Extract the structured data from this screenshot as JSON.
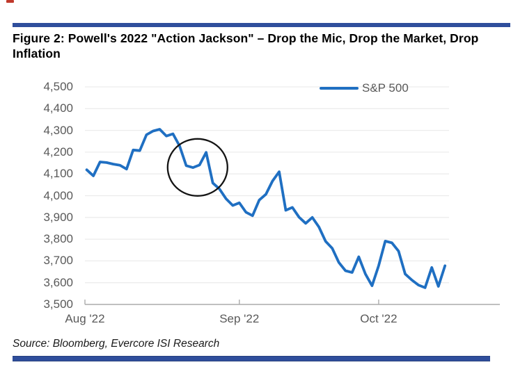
{
  "page": {
    "title": "Figure 2: Powell's 2022 \"Action Jackson\" – Drop the Mic, Drop the Market, Drop Inflation",
    "source": "Source: Bloomberg, Evercore ISI Research"
  },
  "legend": {
    "label": "S&P 500"
  },
  "colors": {
    "line": "#1f6fc2",
    "rule_bar": "#2f4e9c",
    "axis_text": "#595959",
    "grid": "#ececec",
    "axis": "#ababab",
    "annotation_circle": "#141414",
    "red_mark": "#c0392b"
  },
  "chart_data": {
    "type": "line",
    "title": "Figure 2: Powell's 2022 \"Action Jackson\" – Drop the Mic, Drop the Market, Drop Inflation",
    "legend_position": "top-right",
    "grid": "horizontal",
    "ylim": [
      3500,
      4500
    ],
    "y_ticks": [
      4500,
      4400,
      4300,
      4200,
      4100,
      4000,
      3900,
      3800,
      3700,
      3600,
      3500
    ],
    "y_tick_labels": [
      "4,500",
      "4,400",
      "4,300",
      "4,200",
      "4,100",
      "4,000",
      "3,900",
      "3,800",
      "3,700",
      "3,600",
      "3,500"
    ],
    "x_tick_labels": [
      "Aug '22",
      "Sep '22",
      "Oct '22"
    ],
    "x_tick_day_index": [
      0,
      23,
      44
    ],
    "series": [
      {
        "name": "S&P 500",
        "x": [
          "2022-08-01",
          "2022-08-02",
          "2022-08-03",
          "2022-08-04",
          "2022-08-05",
          "2022-08-08",
          "2022-08-09",
          "2022-08-10",
          "2022-08-11",
          "2022-08-12",
          "2022-08-15",
          "2022-08-16",
          "2022-08-17",
          "2022-08-18",
          "2022-08-19",
          "2022-08-22",
          "2022-08-23",
          "2022-08-24",
          "2022-08-25",
          "2022-08-26",
          "2022-08-29",
          "2022-08-30",
          "2022-08-31",
          "2022-09-01",
          "2022-09-02",
          "2022-09-06",
          "2022-09-07",
          "2022-09-08",
          "2022-09-09",
          "2022-09-12",
          "2022-09-13",
          "2022-09-14",
          "2022-09-15",
          "2022-09-16",
          "2022-09-19",
          "2022-09-20",
          "2022-09-21",
          "2022-09-22",
          "2022-09-23",
          "2022-09-26",
          "2022-09-27",
          "2022-09-28",
          "2022-09-29",
          "2022-09-30",
          "2022-10-03",
          "2022-10-04",
          "2022-10-05",
          "2022-10-06",
          "2022-10-07",
          "2022-10-10",
          "2022-10-11",
          "2022-10-12",
          "2022-10-13",
          "2022-10-14",
          "2022-10-17"
        ],
        "values": [
          4119,
          4091,
          4155,
          4152,
          4145,
          4140,
          4122,
          4210,
          4207,
          4280,
          4297,
          4305,
          4274,
          4284,
          4228,
          4138,
          4129,
          4141,
          4199,
          4058,
          4031,
          3986,
          3955,
          3967,
          3924,
          3908,
          3980,
          4006,
          4067,
          4110,
          3933,
          3946,
          3901,
          3873,
          3900,
          3856,
          3790,
          3758,
          3693,
          3655,
          3647,
          3719,
          3640,
          3586,
          3678,
          3791,
          3783,
          3745,
          3640,
          3612,
          3589,
          3577,
          3670,
          3583,
          3678
        ]
      }
    ],
    "annotation": {
      "shape": "circle",
      "meaning": "highlights Jackson Hole speech drop (Aug 25–26, 2022)",
      "center_day_index": 16.7,
      "center_value": 4130
    }
  }
}
